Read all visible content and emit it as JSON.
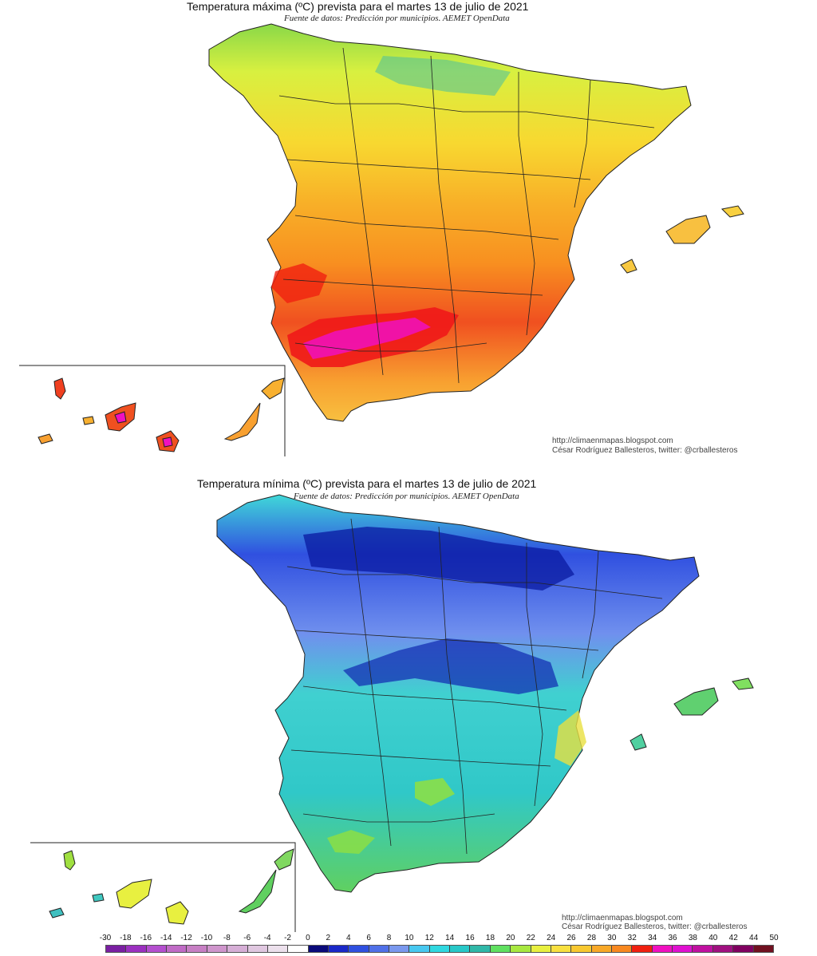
{
  "maps": [
    {
      "id": "max",
      "title": "Temperatura máxima (ºC) prevista para el martes 13 de julio de 2021",
      "subtitle": "Fuente de datos: Predicción por municipios. AEMET OpenData",
      "credit_url": "http://climaenmapas.blogspot.com",
      "credit_author": "César Rodríguez Ballesteros, twitter: @crballesteros"
    },
    {
      "id": "min",
      "title": "Temperatura mínima (ºC) prevista para el martes 13 de julio de 2021",
      "subtitle": "Fuente de datos: Predicción por municipios. AEMET OpenData",
      "credit_url": "http://climaenmapas.blogspot.com",
      "credit_author": "César Rodríguez Ballesteros, twitter: @crballesteros"
    }
  ],
  "legend": {
    "labels": [
      "-30",
      "-18",
      "-16",
      "-14",
      "-12",
      "-10",
      "-8",
      "-6",
      "-4",
      "-2",
      "0",
      "2",
      "4",
      "6",
      "8",
      "10",
      "12",
      "14",
      "16",
      "18",
      "20",
      "22",
      "24",
      "26",
      "28",
      "30",
      "32",
      "34",
      "36",
      "38",
      "40",
      "42",
      "44",
      "50"
    ],
    "colors": [
      "#7a1fa2",
      "#9b30c0",
      "#b44fcf",
      "#c06bc6",
      "#c77fc4",
      "#cf95cc",
      "#d6aed6",
      "#e0c7e0",
      "#ece0ec",
      "#ffffff",
      "#0a0a7a",
      "#1a28c8",
      "#2f50e0",
      "#5070e8",
      "#7a98ee",
      "#48c8f0",
      "#30d8e0",
      "#28c8c8",
      "#30b8a8",
      "#60e060",
      "#a8e840",
      "#e8f040",
      "#f8e040",
      "#f8c830",
      "#f8a828",
      "#f88820",
      "#f02010",
      "#f010c0",
      "#e010d0",
      "#c010a0",
      "#a01080",
      "#800060",
      "#701020"
    ]
  }
}
